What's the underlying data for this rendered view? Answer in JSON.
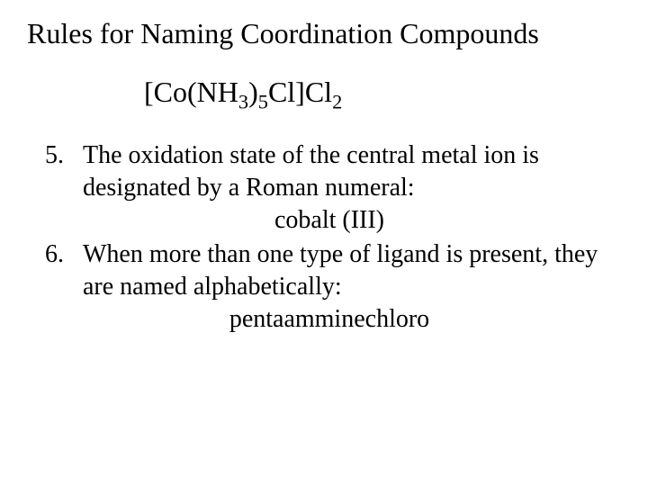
{
  "title": "Rules for Naming Coordination Compounds",
  "formula": {
    "p1": "[Co(NH",
    "s1": "3",
    "p2": ")",
    "s2": "5",
    "p3": "Cl]Cl",
    "s3": "2"
  },
  "rules": [
    {
      "num": "5.",
      "text": "The oxidation state of the central metal ion is designated by a Roman numeral:",
      "example": "cobalt (III)"
    },
    {
      "num": "6.",
      "text": "When more than one type of ligand is present, they are named alphabetically:",
      "example": "pentaamminechloro"
    }
  ],
  "style": {
    "background": "#ffffff",
    "text_color": "#000000",
    "title_fontsize": 32,
    "body_fontsize": 28,
    "font_family": "Times New Roman"
  }
}
